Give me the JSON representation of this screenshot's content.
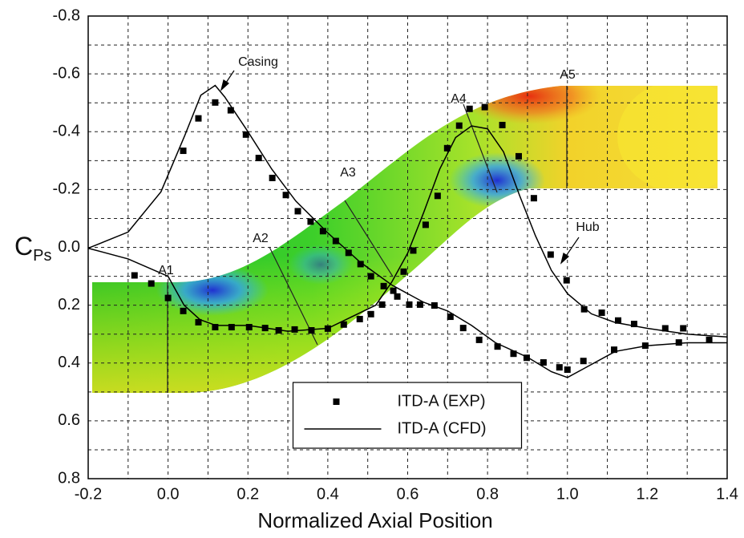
{
  "chart_data": {
    "type": "scatter-line",
    "xlabel": "Normalized Axial Position",
    "ylabel": {
      "main": "C",
      "sub": "Ps"
    },
    "xlim": [
      -0.2,
      1.4
    ],
    "ylim": [
      -0.8,
      0.8
    ],
    "y_inverted": true,
    "xticks": [
      -0.2,
      {
        "value": 0,
        "label": "0.0"
      },
      0.2,
      0.4,
      0.6,
      0.8,
      {
        "value": 1,
        "label": "1.0"
      },
      1.2,
      1.4
    ],
    "yticks": [
      -0.8,
      -0.6,
      -0.4,
      -0.2,
      {
        "value": 0,
        "label": "0.0"
      },
      0.2,
      0.4,
      0.6,
      0.8
    ],
    "grid": true,
    "legend": "lower center",
    "annotations": [
      "Casing",
      "Hub",
      "A1",
      "A2",
      "A3",
      "A4",
      "A5"
    ],
    "series": [
      {
        "name": "ITD-A (EXP)",
        "style": "marker",
        "color": "#000000",
        "x": [
          0.038,
          0.076,
          0.118,
          0.157,
          0.195,
          0.227,
          0.261,
          0.295,
          0.325,
          0.357,
          0.388,
          0.42,
          0.452,
          0.482,
          0.508,
          0.54,
          0.574,
          0.604,
          0.631,
          0.667,
          0.707,
          0.739,
          0.779,
          0.825,
          0.865,
          0.898,
          0.94,
          0.98,
          1.0,
          1.04,
          1.117,
          1.195,
          1.279,
          1.355,
          -0.084,
          -0.042,
          0.0,
          0.038,
          0.076,
          0.118,
          0.159,
          0.203,
          0.243,
          0.277,
          0.317,
          0.359,
          0.4,
          0.44,
          0.48,
          0.508,
          0.536,
          0.564,
          0.59,
          0.614,
          0.645,
          0.675,
          0.699,
          0.729,
          0.755,
          0.793,
          0.837,
          0.878,
          0.916,
          0.958,
          0.998,
          1.042,
          1.086,
          1.127,
          1.167,
          1.245,
          1.29
        ],
        "values": [
          -0.334,
          -0.446,
          -0.501,
          -0.474,
          -0.39,
          -0.309,
          -0.24,
          -0.181,
          -0.125,
          -0.089,
          -0.056,
          -0.022,
          0.019,
          0.058,
          0.1,
          0.134,
          0.17,
          0.198,
          0.198,
          0.201,
          0.24,
          0.279,
          0.32,
          0.343,
          0.368,
          0.382,
          0.398,
          0.415,
          0.423,
          0.393,
          0.354,
          0.34,
          0.329,
          0.32,
          0.097,
          0.125,
          0.175,
          0.22,
          0.259,
          0.276,
          0.276,
          0.276,
          0.279,
          0.287,
          0.284,
          0.287,
          0.281,
          0.267,
          0.248,
          0.231,
          0.198,
          0.15,
          0.084,
          0.011,
          -0.078,
          -0.178,
          -0.343,
          -0.421,
          -0.479,
          -0.485,
          -0.423,
          -0.315,
          -0.17,
          0.025,
          0.114,
          0.214,
          0.226,
          0.253,
          0.265,
          0.28,
          0.28
        ]
      },
      {
        "name": "ITD-A (CFD)",
        "style": "line",
        "color": "#000000",
        "x": [
          -0.2,
          -0.1,
          -0.018,
          0.042,
          0.082,
          0.118,
          0.142,
          0.2,
          0.26,
          0.32,
          0.4,
          0.48,
          0.56,
          0.64,
          0.7,
          0.76,
          0.82,
          0.9,
          0.96,
          1.0,
          1.04,
          1.12,
          1.2,
          1.3,
          1.4,
          null,
          -0.2,
          -0.1,
          0.0,
          0.04,
          0.08,
          0.12,
          0.2,
          0.3,
          0.4,
          0.46,
          0.52,
          0.56,
          0.6,
          0.64,
          0.68,
          0.72,
          0.76,
          0.8,
          0.84,
          0.88,
          0.92,
          0.96,
          1.0,
          1.06,
          1.12,
          1.2,
          1.3,
          1.4
        ],
        "values": [
          0.003,
          -0.053,
          -0.192,
          -0.387,
          -0.526,
          -0.56,
          -0.52,
          -0.4,
          -0.27,
          -0.16,
          -0.05,
          0.05,
          0.13,
          0.19,
          0.22,
          0.27,
          0.33,
          0.38,
          0.43,
          0.45,
          0.42,
          0.36,
          0.34,
          0.33,
          0.33,
          null,
          0.003,
          0.04,
          0.1,
          0.2,
          0.25,
          0.27,
          0.27,
          0.29,
          0.28,
          0.24,
          0.2,
          0.12,
          0.02,
          -0.12,
          -0.27,
          -0.38,
          -0.42,
          -0.41,
          -0.33,
          -0.18,
          -0.04,
          0.08,
          0.16,
          0.23,
          0.26,
          0.28,
          0.3,
          0.31
        ]
      }
    ]
  }
}
